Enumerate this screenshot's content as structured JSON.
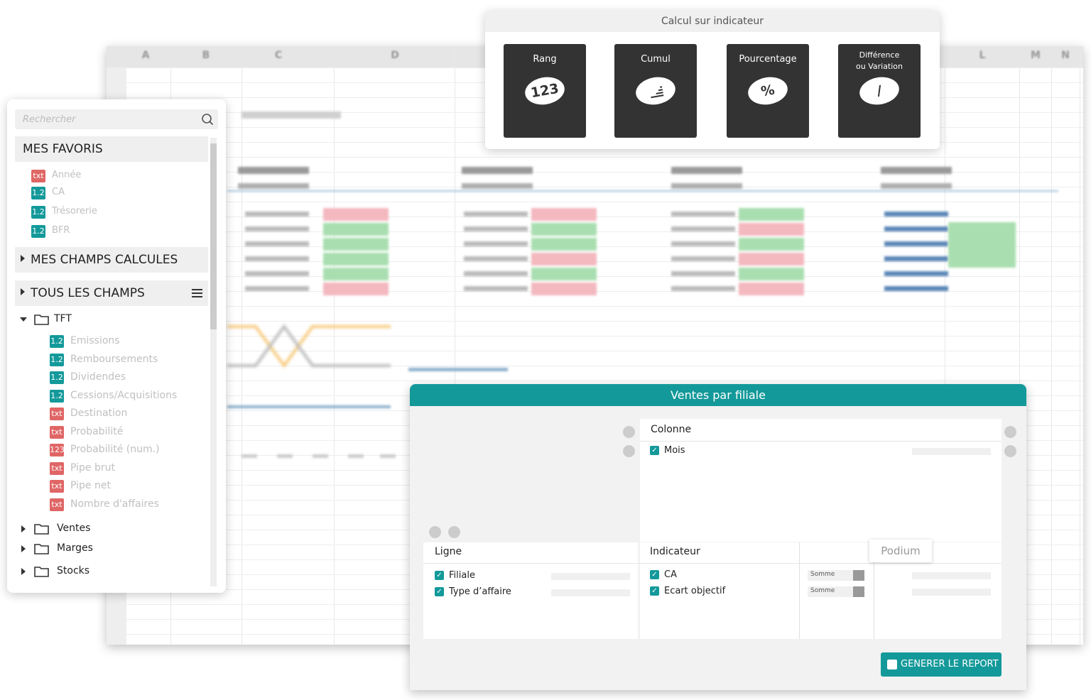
{
  "spreadsheet": {
    "columns": [
      "A",
      "B",
      "C",
      "D",
      "L",
      "M",
      "N"
    ]
  },
  "indicator_panel": {
    "title": "Calcul sur indicateur",
    "cards": [
      {
        "label": [
          "Rang"
        ],
        "icon": "123"
      },
      {
        "label": [
          "Cumul"
        ]
      },
      {
        "label": [
          "Pourcentage"
        ],
        "icon": "%"
      },
      {
        "label": [
          "Différence",
          "ou Variation"
        ],
        "icon": "/"
      }
    ]
  },
  "sidebar": {
    "search_placeholder": "Rechercher",
    "favorites": {
      "title": "MES FAVORIS",
      "items": [
        {
          "badge": "txt",
          "label": "Année"
        },
        {
          "badge": "1.2",
          "label": "CA"
        },
        {
          "badge": "1.2",
          "label": "Trésorerie"
        },
        {
          "badge": "1.2",
          "label": "BFR"
        }
      ]
    },
    "calculated": {
      "title": "MES CHAMPS CALCULES"
    },
    "all_fields": {
      "title": "TOUS LES CHAMPS",
      "folders": [
        {
          "label": "TFT",
          "items": [
            {
              "badge": "1.2",
              "label": "Emissions"
            },
            {
              "badge": "1.2",
              "label": "Remboursements"
            },
            {
              "badge": "1.2",
              "label": "Dividendes"
            },
            {
              "badge": "1.2",
              "label": "Cessions/Acquisitions"
            },
            {
              "badge": "txt",
              "label": "Destination"
            },
            {
              "badge": "txt",
              "label": "Probabilité"
            },
            {
              "badge": "123",
              "label": "Probabilité (num.)"
            },
            {
              "badge": "txt",
              "label": "Pipe brut"
            },
            {
              "badge": "txt",
              "label": "Pipe net"
            },
            {
              "badge": "txt",
              "label": "Nombre d'affaires"
            }
          ]
        },
        {
          "label": "Ventes"
        },
        {
          "label": "Marges"
        },
        {
          "label": "Stocks"
        }
      ]
    }
  },
  "report": {
    "title": "Ventes par filiale",
    "column": {
      "title": "Colonne",
      "items": [
        "Mois"
      ]
    },
    "row": {
      "title": "Ligne",
      "items": [
        "Filiale",
        "Type d’affaire"
      ]
    },
    "indicator": {
      "title": "Indicateur",
      "items": [
        {
          "label": "CA",
          "aggregation": "Somme"
        },
        {
          "label": "Ecart objectif",
          "aggregation": "Somme"
        }
      ]
    },
    "tooltip": "Podium",
    "button": "GENERER LE REPORT"
  }
}
